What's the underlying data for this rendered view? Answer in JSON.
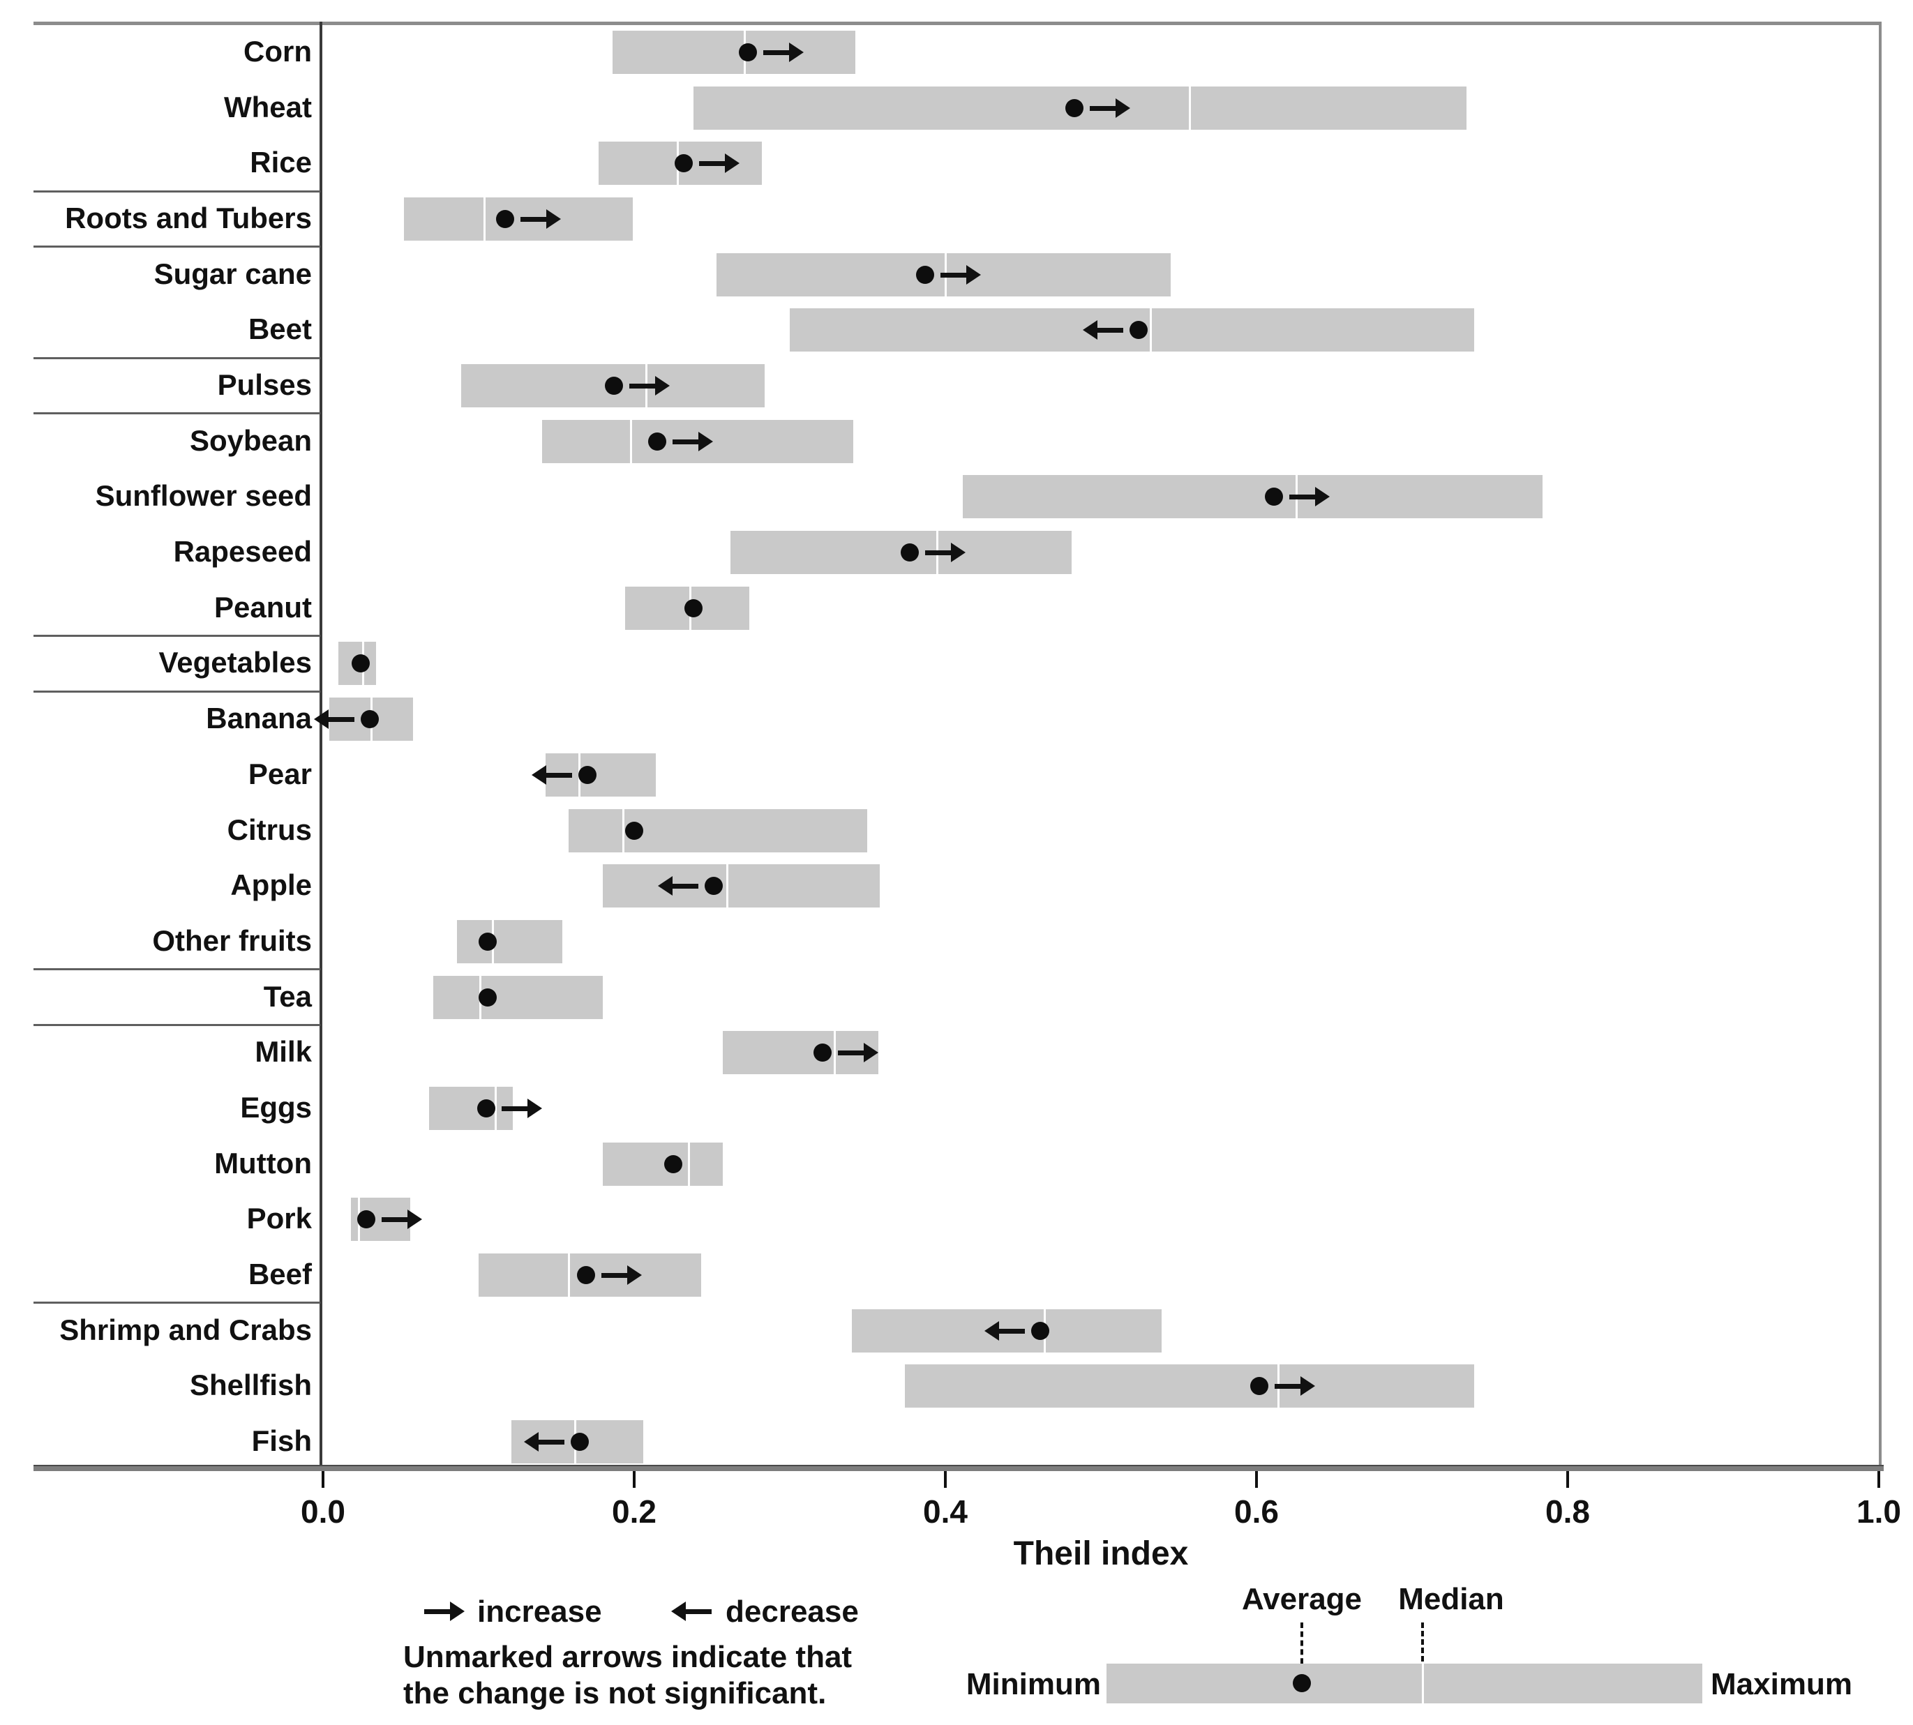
{
  "chart_data": {
    "type": "range-dot",
    "xlabel": "Theil index",
    "xlim": [
      0.0,
      1.0
    ],
    "x_tick_values": [
      0.0,
      0.2,
      0.4,
      0.6,
      0.8,
      1.0
    ],
    "x_ticks": [
      "0.0",
      "0.2",
      "0.4",
      "0.6",
      "0.8",
      "1.0"
    ],
    "grid": false,
    "categories": [
      {
        "name": "Corn",
        "min": 0.186,
        "max": 0.342,
        "average": 0.273,
        "median": 0.271,
        "arrow": "increase"
      },
      {
        "name": "Wheat",
        "min": 0.238,
        "max": 0.735,
        "average": 0.483,
        "median": 0.557,
        "arrow": "increase"
      },
      {
        "name": "Rice",
        "min": 0.177,
        "max": 0.282,
        "average": 0.232,
        "median": 0.228,
        "arrow": "increase"
      },
      {
        "name": "Roots and Tubers",
        "min": 0.052,
        "max": 0.199,
        "average": 0.117,
        "median": 0.104,
        "arrow": "increase"
      },
      {
        "name": "Sugar cane",
        "min": 0.253,
        "max": 0.545,
        "average": 0.387,
        "median": 0.4,
        "arrow": "increase"
      },
      {
        "name": "Beet",
        "min": 0.3,
        "max": 0.74,
        "average": 0.524,
        "median": 0.532,
        "arrow": "decrease"
      },
      {
        "name": "Pulses",
        "min": 0.089,
        "max": 0.284,
        "average": 0.187,
        "median": 0.208,
        "arrow": "increase"
      },
      {
        "name": "Soybean",
        "min": 0.141,
        "max": 0.341,
        "average": 0.215,
        "median": 0.198,
        "arrow": "increase"
      },
      {
        "name": "Sunflower seed",
        "min": 0.411,
        "max": 0.784,
        "average": 0.611,
        "median": 0.626,
        "arrow": "increase"
      },
      {
        "name": "Rapeseed",
        "min": 0.262,
        "max": 0.481,
        "average": 0.377,
        "median": 0.395,
        "arrow": "increase"
      },
      {
        "name": "Peanut",
        "min": 0.194,
        "max": 0.274,
        "average": 0.238,
        "median": 0.236,
        "arrow": "none"
      },
      {
        "name": "Vegetables",
        "min": 0.01,
        "max": 0.034,
        "average": 0.024,
        "median": 0.026,
        "arrow": "none"
      },
      {
        "name": "Banana",
        "min": 0.004,
        "max": 0.058,
        "average": 0.03,
        "median": 0.031,
        "arrow": "decrease"
      },
      {
        "name": "Pear",
        "min": 0.143,
        "max": 0.214,
        "average": 0.17,
        "median": 0.165,
        "arrow": "decrease"
      },
      {
        "name": "Citrus",
        "min": 0.158,
        "max": 0.35,
        "average": 0.2,
        "median": 0.193,
        "arrow": "none"
      },
      {
        "name": "Apple",
        "min": 0.18,
        "max": 0.358,
        "average": 0.251,
        "median": 0.26,
        "arrow": "decrease"
      },
      {
        "name": "Other fruits",
        "min": 0.086,
        "max": 0.154,
        "average": 0.106,
        "median": 0.109,
        "arrow": "none"
      },
      {
        "name": "Tea",
        "min": 0.071,
        "max": 0.18,
        "average": 0.106,
        "median": 0.101,
        "arrow": "none"
      },
      {
        "name": "Milk",
        "min": 0.257,
        "max": 0.357,
        "average": 0.321,
        "median": 0.329,
        "arrow": "increase"
      },
      {
        "name": "Eggs",
        "min": 0.068,
        "max": 0.122,
        "average": 0.105,
        "median": 0.111,
        "arrow": "increase"
      },
      {
        "name": "Mutton",
        "min": 0.18,
        "max": 0.257,
        "average": 0.225,
        "median": 0.235,
        "arrow": "none"
      },
      {
        "name": "Pork",
        "min": 0.018,
        "max": 0.056,
        "average": 0.028,
        "median": 0.023,
        "arrow": "increase"
      },
      {
        "name": "Beef",
        "min": 0.1,
        "max": 0.243,
        "average": 0.169,
        "median": 0.158,
        "arrow": "increase"
      },
      {
        "name": "Shrimp and Crabs",
        "min": 0.34,
        "max": 0.539,
        "average": 0.461,
        "median": 0.464,
        "arrow": "decrease"
      },
      {
        "name": "Shellfish",
        "min": 0.374,
        "max": 0.74,
        "average": 0.602,
        "median": 0.614,
        "arrow": "increase"
      },
      {
        "name": "Fish",
        "min": 0.121,
        "max": 0.206,
        "average": 0.165,
        "median": 0.162,
        "arrow": "decrease"
      }
    ],
    "group_separators_after": [
      "Rice",
      "Roots and Tubers",
      "Beet",
      "Pulses",
      "Peanut",
      "Vegetables",
      "Other fruits",
      "Tea",
      "Beef"
    ]
  },
  "legend": {
    "increase_label": "increase",
    "decrease_label": "decrease",
    "note_line1": "Unmarked arrows indicate that",
    "note_line2": "the change is not significant.",
    "minimum_label": "Minimum",
    "maximum_label": "Maximum",
    "average_label": "Average",
    "median_label": "Median"
  },
  "colors": {
    "bar_fill": "#c9c9c9",
    "dot": "#0d0d0d",
    "median_line": "#ffffff",
    "axis_dark": "#3a3a3a",
    "frame_gray": "#8c8c8c",
    "text": "#111111"
  }
}
